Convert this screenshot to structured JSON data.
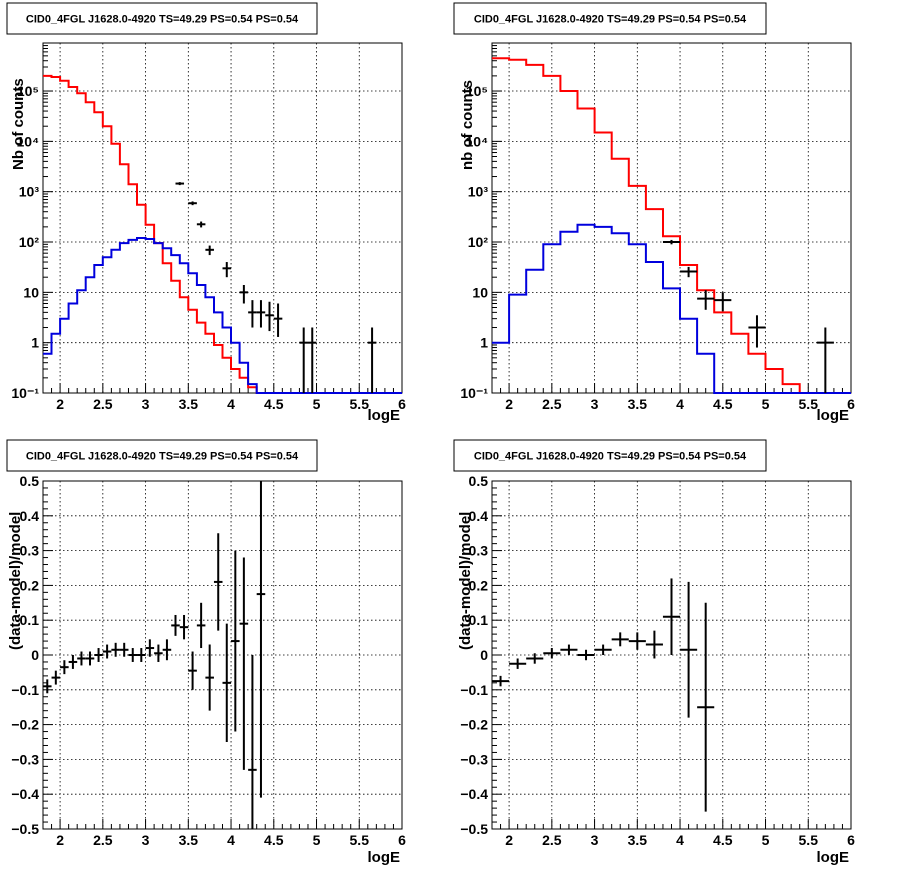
{
  "chart_data": [
    {
      "type": "line",
      "title": "CID0_4FGL J1628.0-4920 TS=49.29 PS=0.54 PS=0.54",
      "xlabel": "logE",
      "ylabel": "Nb of counts",
      "xlim": [
        1.8,
        6.0
      ],
      "ylim": [
        0.1,
        900000
      ],
      "yscale": "log",
      "grid": true,
      "x_ticks": [
        "2",
        "2.5",
        "3",
        "3.5",
        "4",
        "4.5",
        "5",
        "5.5",
        "6"
      ],
      "y_ticks": [
        "10⁻¹",
        "1",
        "10",
        "10²",
        "10³",
        "10⁴",
        "10⁵"
      ],
      "bin_edges": [
        1.8,
        1.9,
        2.0,
        2.1,
        2.2,
        2.3,
        2.4,
        2.5,
        2.6,
        2.7,
        2.8,
        2.9,
        3.0,
        3.1,
        3.2,
        3.3,
        3.4,
        3.5,
        3.6,
        3.7,
        3.8,
        3.9,
        4.0,
        4.1,
        4.2,
        4.3,
        4.4,
        4.5,
        4.6,
        4.7,
        4.8,
        4.9,
        5.0,
        5.1,
        5.2,
        5.3,
        5.4,
        5.5,
        5.6,
        5.7,
        5.8,
        5.9,
        6.0
      ],
      "series": [
        {
          "color": "#ff0000",
          "style": "step",
          "values": [
            200000,
            190000,
            160000,
            120000,
            90000,
            60000,
            38000,
            20000,
            9000,
            3500,
            1400,
            550,
            220,
            95,
            38,
            17,
            8,
            4.5,
            2.5,
            1.5,
            0.9,
            0.5,
            0.3,
            0.2,
            0.13,
            0.1,
            0.1,
            0.1,
            0.1,
            0.1,
            0.1,
            0.1,
            0.1,
            0.1,
            0.1,
            0.1,
            0.1,
            0.1,
            0.1,
            0.1,
            0.1,
            0.1
          ]
        },
        {
          "color": "#0000dd",
          "style": "step",
          "values": [
            0.6,
            1.5,
            3,
            6,
            11,
            20,
            35,
            50,
            70,
            95,
            110,
            120,
            115,
            95,
            75,
            55,
            38,
            24,
            14,
            8,
            4,
            2,
            1,
            0.4,
            0.15,
            0.1,
            0.1,
            0.1,
            0.1,
            0.1,
            0.1,
            0.1,
            0.1,
            0.1,
            0.1,
            0.1,
            0.1,
            0.1,
            0.1,
            0.1,
            0.1,
            0.1
          ]
        }
      ],
      "points": [
        {
          "x": 3.4,
          "y": 1450,
          "xerr": 0.05,
          "ylo": 1350,
          "yhi": 1550
        },
        {
          "x": 3.55,
          "y": 590,
          "xerr": 0.05,
          "ylo": 540,
          "yhi": 640
        },
        {
          "x": 3.65,
          "y": 225,
          "xerr": 0.05,
          "ylo": 195,
          "yhi": 255
        },
        {
          "x": 3.75,
          "y": 70,
          "xerr": 0.05,
          "ylo": 55,
          "yhi": 85
        },
        {
          "x": 3.95,
          "y": 30,
          "xerr": 0.05,
          "ylo": 20,
          "yhi": 40
        },
        {
          "x": 4.15,
          "y": 10,
          "xerr": 0.05,
          "ylo": 6,
          "yhi": 14
        },
        {
          "x": 4.25,
          "y": 4,
          "xerr": 0.05,
          "ylo": 2,
          "yhi": 7
        },
        {
          "x": 4.35,
          "y": 4,
          "xerr": 0.05,
          "ylo": 2,
          "yhi": 7
        },
        {
          "x": 4.45,
          "y": 3.5,
          "xerr": 0.05,
          "ylo": 1.7,
          "yhi": 6.5
        },
        {
          "x": 4.55,
          "y": 3,
          "xerr": 0.05,
          "ylo": 1.3,
          "yhi": 6
        },
        {
          "x": 4.85,
          "y": 1,
          "xerr": 0.05,
          "ylo": 0.1,
          "yhi": 2
        },
        {
          "x": 4.95,
          "y": 1,
          "xerr": 0.05,
          "ylo": 0.1,
          "yhi": 2
        },
        {
          "x": 5.65,
          "y": 1,
          "xerr": 0.05,
          "ylo": 0.1,
          "yhi": 2
        }
      ]
    },
    {
      "type": "line",
      "title": "CID0_4FGL J1628.0-4920 TS=49.29 PS=0.54 PS=0.54",
      "xlabel": "logE",
      "ylabel": "nb of counts",
      "xlim": [
        1.8,
        6.0
      ],
      "ylim": [
        0.1,
        900000
      ],
      "yscale": "log",
      "grid": true,
      "x_ticks": [
        "2",
        "2.5",
        "3",
        "3.5",
        "4",
        "4.5",
        "5",
        "5.5",
        "6"
      ],
      "y_ticks": [
        "10⁻¹",
        "1",
        "10",
        "10²",
        "10³",
        "10⁴",
        "10⁵"
      ],
      "bin_edges": [
        1.8,
        2.0,
        2.2,
        2.4,
        2.6,
        2.8,
        3.0,
        3.2,
        3.4,
        3.6,
        3.8,
        4.0,
        4.2,
        4.4,
        4.6,
        4.8,
        5.0,
        5.2,
        5.4,
        5.6,
        5.8,
        6.0
      ],
      "series": [
        {
          "color": "#ff0000",
          "style": "step",
          "values": [
            450000,
            420000,
            330000,
            200000,
            100000,
            45000,
            15000,
            4500,
            1300,
            450,
            130,
            35,
            11,
            4,
            1.5,
            0.6,
            0.3,
            0.15,
            0.1,
            0.1,
            0.1
          ]
        },
        {
          "color": "#0000dd",
          "style": "step",
          "values": [
            1,
            9,
            28,
            90,
            160,
            220,
            200,
            150,
            90,
            40,
            12,
            3,
            0.6,
            0.1,
            0.1,
            0.1,
            0.1,
            0.1,
            0.1,
            0.1,
            0.1
          ]
        }
      ],
      "points": [
        {
          "x": 3.9,
          "y": 100,
          "xerr": 0.1,
          "ylo": 90,
          "yhi": 110
        },
        {
          "x": 4.1,
          "y": 26,
          "xerr": 0.1,
          "ylo": 20,
          "yhi": 32
        },
        {
          "x": 4.3,
          "y": 7.5,
          "xerr": 0.1,
          "ylo": 4.5,
          "yhi": 11
        },
        {
          "x": 4.5,
          "y": 7,
          "xerr": 0.1,
          "ylo": 4.2,
          "yhi": 10
        },
        {
          "x": 4.9,
          "y": 2,
          "xerr": 0.1,
          "ylo": 0.8,
          "yhi": 3.5
        },
        {
          "x": 5.7,
          "y": 1,
          "xerr": 0.1,
          "ylo": 0.1,
          "yhi": 2
        }
      ]
    },
    {
      "type": "scatter",
      "title": "CID0_4FGL J1628.0-4920 TS=49.29 PS=0.54 PS=0.54",
      "xlabel": "logE",
      "ylabel": "(data-model)/model",
      "xlim": [
        1.8,
        6.0
      ],
      "ylim": [
        -0.5,
        0.5
      ],
      "grid": true,
      "x_ticks": [
        "2",
        "2.5",
        "3",
        "3.5",
        "4",
        "4.5",
        "5",
        "5.5",
        "6"
      ],
      "y_ticks": [
        "−0.5",
        "−0.4",
        "−0.3",
        "−0.2",
        "−0.1",
        "0",
        "0.1",
        "0.2",
        "0.3",
        "0.4",
        "0.5"
      ],
      "points": [
        {
          "x": 1.85,
          "y": -0.09,
          "xerr": 0.05,
          "ylo": -0.11,
          "yhi": -0.07
        },
        {
          "x": 1.95,
          "y": -0.065,
          "xerr": 0.05,
          "ylo": -0.085,
          "yhi": -0.045
        },
        {
          "x": 2.05,
          "y": -0.035,
          "xerr": 0.05,
          "ylo": -0.055,
          "yhi": -0.015
        },
        {
          "x": 2.15,
          "y": -0.02,
          "xerr": 0.05,
          "ylo": -0.04,
          "yhi": 0.0
        },
        {
          "x": 2.25,
          "y": -0.01,
          "xerr": 0.05,
          "ylo": -0.03,
          "yhi": 0.01
        },
        {
          "x": 2.35,
          "y": -0.01,
          "xerr": 0.05,
          "ylo": -0.03,
          "yhi": 0.01
        },
        {
          "x": 2.45,
          "y": 0.0,
          "xerr": 0.05,
          "ylo": -0.02,
          "yhi": 0.02
        },
        {
          "x": 2.55,
          "y": 0.01,
          "xerr": 0.05,
          "ylo": -0.01,
          "yhi": 0.03
        },
        {
          "x": 2.65,
          "y": 0.015,
          "xerr": 0.05,
          "ylo": -0.005,
          "yhi": 0.035
        },
        {
          "x": 2.75,
          "y": 0.015,
          "xerr": 0.05,
          "ylo": -0.005,
          "yhi": 0.035
        },
        {
          "x": 2.85,
          "y": 0.0,
          "xerr": 0.05,
          "ylo": -0.02,
          "yhi": 0.02
        },
        {
          "x": 2.95,
          "y": 0.0,
          "xerr": 0.05,
          "ylo": -0.02,
          "yhi": 0.02
        },
        {
          "x": 3.05,
          "y": 0.02,
          "xerr": 0.05,
          "ylo": -0.005,
          "yhi": 0.045
        },
        {
          "x": 3.15,
          "y": 0.005,
          "xerr": 0.05,
          "ylo": -0.02,
          "yhi": 0.03
        },
        {
          "x": 3.25,
          "y": 0.015,
          "xerr": 0.05,
          "ylo": -0.015,
          "yhi": 0.045
        },
        {
          "x": 3.35,
          "y": 0.085,
          "xerr": 0.05,
          "ylo": 0.055,
          "yhi": 0.115
        },
        {
          "x": 3.45,
          "y": 0.08,
          "xerr": 0.05,
          "ylo": 0.045,
          "yhi": 0.115
        },
        {
          "x": 3.55,
          "y": -0.045,
          "xerr": 0.05,
          "ylo": -0.1,
          "yhi": 0.01
        },
        {
          "x": 3.65,
          "y": 0.085,
          "xerr": 0.05,
          "ylo": 0.02,
          "yhi": 0.15
        },
        {
          "x": 3.75,
          "y": -0.065,
          "xerr": 0.05,
          "ylo": -0.16,
          "yhi": 0.03
        },
        {
          "x": 3.85,
          "y": 0.21,
          "xerr": 0.05,
          "ylo": 0.07,
          "yhi": 0.35
        },
        {
          "x": 3.95,
          "y": -0.08,
          "xerr": 0.05,
          "ylo": -0.25,
          "yhi": 0.09
        },
        {
          "x": 4.05,
          "y": 0.04,
          "xerr": 0.05,
          "ylo": -0.22,
          "yhi": 0.3
        },
        {
          "x": 4.15,
          "y": 0.09,
          "xerr": 0.05,
          "ylo": -0.33,
          "yhi": 0.28
        },
        {
          "x": 4.25,
          "y": -0.33,
          "xerr": 0.05,
          "ylo": -0.5,
          "yhi": -0.0
        },
        {
          "x": 4.35,
          "y": 0.175,
          "xerr": 0.05,
          "ylo": -0.41,
          "yhi": 0.5
        }
      ]
    },
    {
      "type": "scatter",
      "title": "CID0_4FGL J1628.0-4920 TS=49.29 PS=0.54 PS=0.54",
      "xlabel": "logE",
      "ylabel": "(data-model)/model",
      "xlim": [
        1.8,
        6.0
      ],
      "ylim": [
        -0.5,
        0.5
      ],
      "grid": true,
      "x_ticks": [
        "2",
        "2.5",
        "3",
        "3.5",
        "4",
        "4.5",
        "5",
        "5.5",
        "6"
      ],
      "y_ticks": [
        "−0.5",
        "−0.4",
        "−0.3",
        "−0.2",
        "−0.1",
        "0",
        "0.1",
        "0.2",
        "0.3",
        "0.4",
        "0.5"
      ],
      "points": [
        {
          "x": 1.9,
          "y": -0.075,
          "xerr": 0.1,
          "ylo": -0.09,
          "yhi": -0.06
        },
        {
          "x": 2.1,
          "y": -0.025,
          "xerr": 0.1,
          "ylo": -0.04,
          "yhi": -0.01
        },
        {
          "x": 2.3,
          "y": -0.01,
          "xerr": 0.1,
          "ylo": -0.025,
          "yhi": 0.005
        },
        {
          "x": 2.5,
          "y": 0.005,
          "xerr": 0.1,
          "ylo": -0.01,
          "yhi": 0.02
        },
        {
          "x": 2.7,
          "y": 0.015,
          "xerr": 0.1,
          "ylo": 0.0,
          "yhi": 0.03
        },
        {
          "x": 2.9,
          "y": 0.0,
          "xerr": 0.1,
          "ylo": -0.015,
          "yhi": 0.015
        },
        {
          "x": 3.1,
          "y": 0.015,
          "xerr": 0.1,
          "ylo": 0.0,
          "yhi": 0.03
        },
        {
          "x": 3.3,
          "y": 0.045,
          "xerr": 0.1,
          "ylo": 0.025,
          "yhi": 0.065
        },
        {
          "x": 3.5,
          "y": 0.04,
          "xerr": 0.1,
          "ylo": 0.015,
          "yhi": 0.065
        },
        {
          "x": 3.7,
          "y": 0.03,
          "xerr": 0.1,
          "ylo": -0.01,
          "yhi": 0.07
        },
        {
          "x": 3.9,
          "y": 0.11,
          "xerr": 0.1,
          "ylo": 0.0,
          "yhi": 0.22
        },
        {
          "x": 4.1,
          "y": 0.015,
          "xerr": 0.1,
          "ylo": -0.18,
          "yhi": 0.21
        },
        {
          "x": 4.3,
          "y": -0.15,
          "xerr": 0.1,
          "ylo": -0.45,
          "yhi": 0.15
        }
      ]
    }
  ]
}
